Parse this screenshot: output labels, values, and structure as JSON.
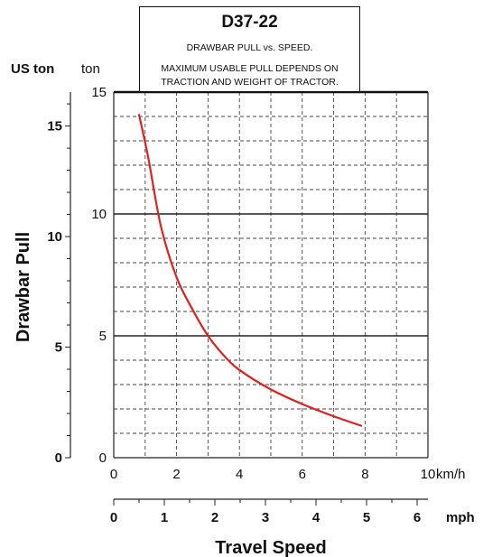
{
  "chart_data": {
    "type": "line",
    "title": "D37-22",
    "subtitle": "DRAWBAR PULL vs. SPEED.",
    "note": [
      "MAXIMUM USABLE PULL DEPENDS ON",
      "TRACTION AND WEIGHT OF TRACTOR."
    ],
    "ylabel": "Drawbar Pull",
    "xlabel": "Travel Speed",
    "y_unit_left": "US ton",
    "y_unit_right": "ton",
    "x_unit_top": "km/h",
    "x_unit_bottom": "mph",
    "xlim": [
      0,
      10
    ],
    "ylim": [
      0,
      15
    ],
    "grid": true,
    "ticks_ton": [
      "0",
      "5",
      "10",
      "15"
    ],
    "ticks_uston": [
      "0",
      "5",
      "10",
      "15"
    ],
    "ticks_kmh": [
      "0",
      "2",
      "4",
      "6",
      "8",
      "10"
    ],
    "ticks_mph": [
      "0",
      "1",
      "2",
      "3",
      "4",
      "5",
      "6"
    ],
    "series": [
      {
        "color": "#e0211d",
        "x": [
          0.8,
          1.1,
          1.5,
          2.0,
          2.5,
          3.0,
          3.5,
          4.0,
          5.0,
          6.0,
          7.0,
          7.9
        ],
        "y": [
          14.1,
          12.3,
          9.5,
          7.4,
          6.1,
          5.0,
          4.2,
          3.6,
          2.8,
          2.2,
          1.7,
          1.3
        ]
      }
    ]
  }
}
